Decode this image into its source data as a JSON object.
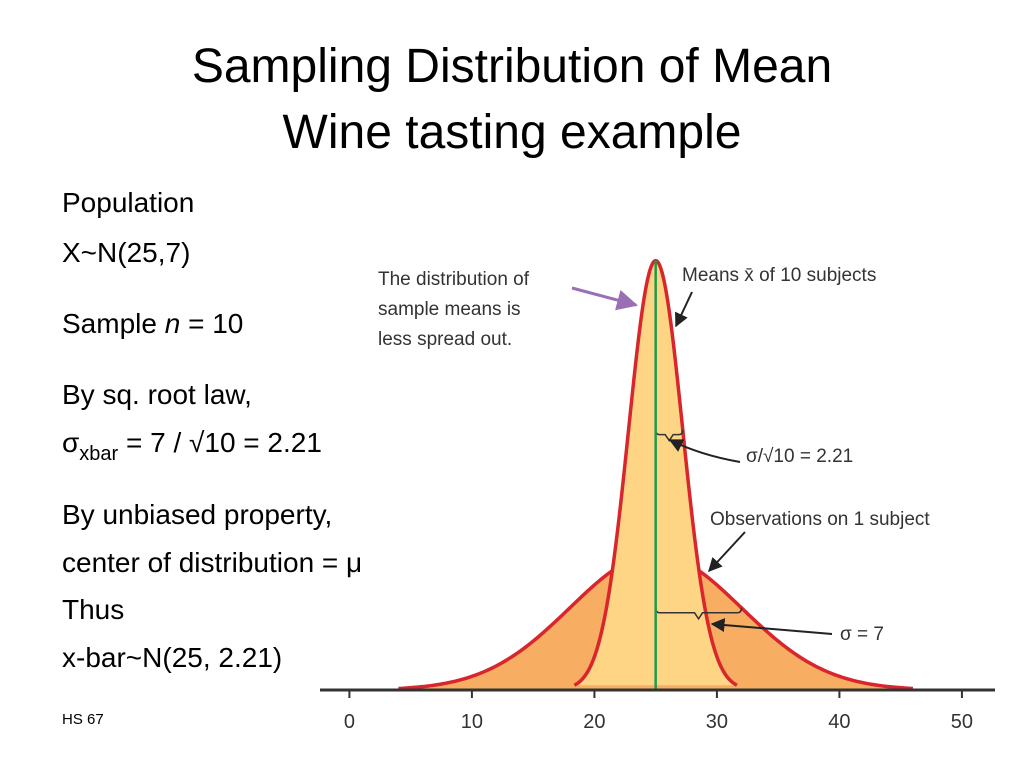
{
  "title": [
    "Sampling Distribution of Mean",
    "Wine tasting example"
  ],
  "body": {
    "population": [
      "Population",
      "X~N(25,7)"
    ],
    "sample": {
      "prefix": "Sample ",
      "var": "n",
      "suffix": " = 10"
    },
    "root_law": {
      "line": "By sq. root law,",
      "symbol": "σ",
      "sub": "xbar",
      "rest": " = 7 / √10 = 2.21"
    },
    "unbiased": [
      "By unbiased property,",
      "center of distribution = μ",
      "Thus",
      "x-bar~N(25, 2.21)"
    ]
  },
  "footer": "HS 67",
  "chart_data": {
    "type": "normal",
    "series": [
      {
        "name": "Observations on 1 subject",
        "mean": 25,
        "sd": 7,
        "sd_label": "σ = 7",
        "color": "#f7ad62"
      },
      {
        "name": "Means x̄ of 10 subjects",
        "mean": 25,
        "sd": 2.21,
        "sd_label": "σ/√10 = 2.21",
        "color": "#fdd585"
      }
    ],
    "annotation": [
      "The distribution of",
      "sample means is",
      "less spread out."
    ],
    "xlim": [
      -2.4,
      52.7
    ],
    "xticks": [
      0,
      10,
      20,
      30,
      40,
      50
    ],
    "ylim": [
      0,
      0.185
    ]
  }
}
